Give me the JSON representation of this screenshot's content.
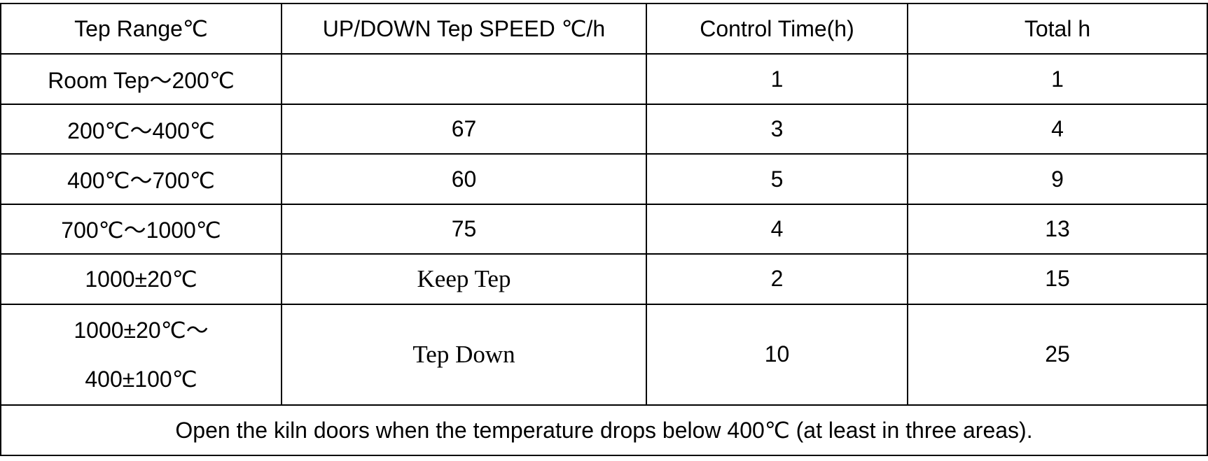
{
  "table": {
    "headers": [
      "Tep Range℃",
      "UP/DOWN Tep SPEED ℃/h",
      "Control Time(h)",
      "Total h"
    ],
    "rows": [
      {
        "range": "Room Tep～200℃",
        "speed": "",
        "control": "1",
        "total": "1"
      },
      {
        "range": "200℃～400℃",
        "speed": "67",
        "control": "3",
        "total": "4"
      },
      {
        "range": "400℃～700℃",
        "speed": "60",
        "control": "5",
        "total": "9"
      },
      {
        "range": "700℃～1000℃",
        "speed": "75",
        "control": "4",
        "total": "13"
      },
      {
        "range": "1000±20℃",
        "speed": "Keep Tep",
        "control": "2",
        "total": "15"
      },
      {
        "range_line1": "1000±20℃～",
        "range_line2": "400±100℃",
        "speed": "Tep Down",
        "control": "10",
        "total": "25"
      }
    ],
    "footer_note": "Open the kiln doors when the temperature drops below 400℃ (at least in three areas)."
  }
}
